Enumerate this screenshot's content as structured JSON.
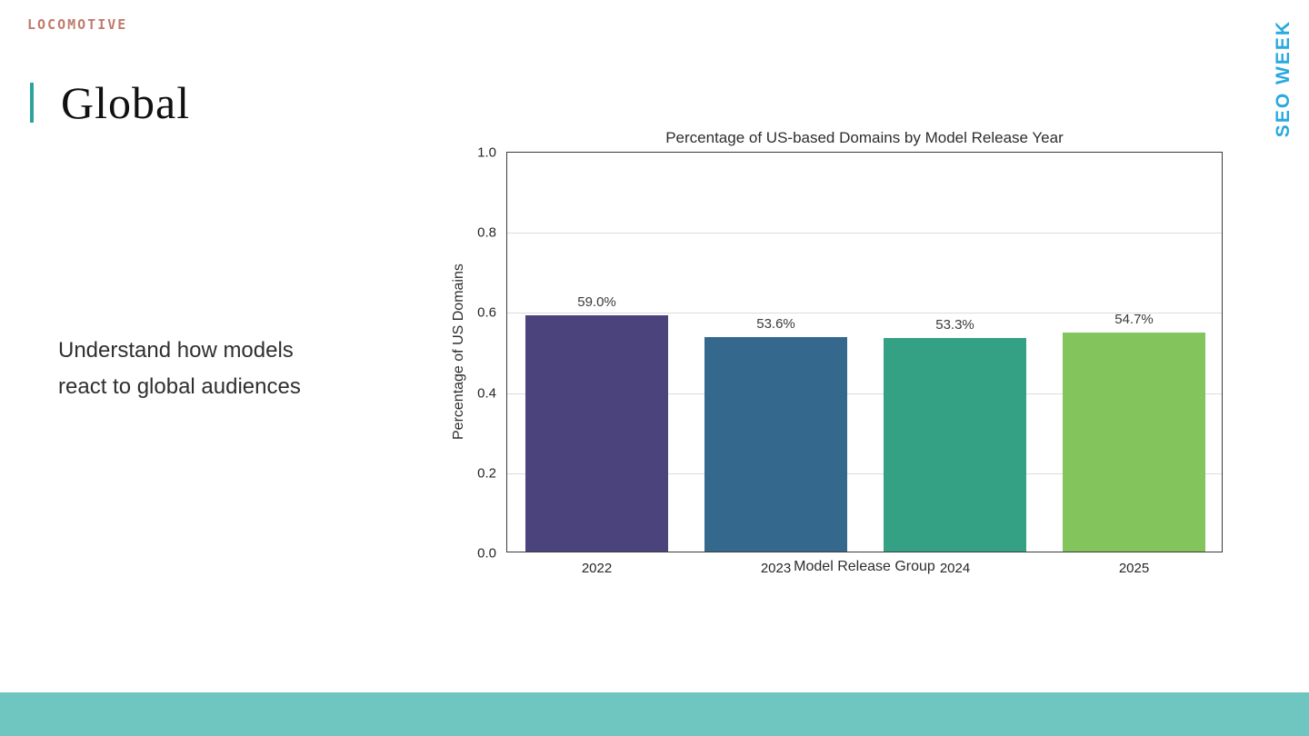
{
  "slide": {
    "logo_text": "LOCOMOTIVE",
    "event_label": "SEO WEEK",
    "title": "Global",
    "body_lines": [
      "Understand how models",
      "react to global audiences"
    ]
  },
  "colors": {
    "logo": "#c07b6d",
    "event": "#29a9e0",
    "accent_bar": "#2fa39b",
    "footer": "#6fc6c0"
  },
  "chart_data": {
    "type": "bar",
    "title": "Percentage of US-based Domains by Model Release Year",
    "xlabel": "Model Release Group",
    "ylabel": "Percentage of US Domains",
    "categories": [
      "2022",
      "2023",
      "2024",
      "2025"
    ],
    "values": [
      0.59,
      0.536,
      0.533,
      0.547
    ],
    "value_labels": [
      "59.0%",
      "53.6%",
      "53.3%",
      "54.7%"
    ],
    "bar_colors": [
      "#4b447c",
      "#34688d",
      "#34a184",
      "#83c45d"
    ],
    "ylim": [
      0.0,
      1.0
    ],
    "yticks": [
      0.0,
      0.2,
      0.4,
      0.6,
      0.8,
      1.0
    ],
    "grid": true,
    "legend": "none"
  }
}
